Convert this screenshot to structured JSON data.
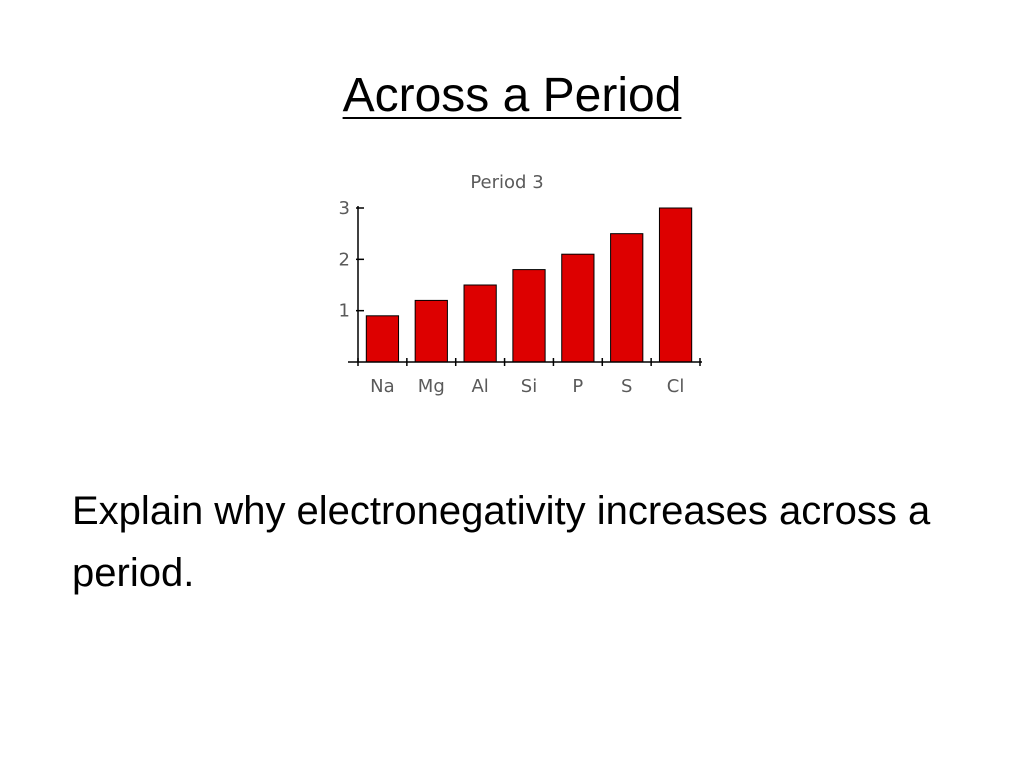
{
  "slide": {
    "title": "Across a Period",
    "body": "Explain why electronegativity increases across a period."
  },
  "chart_data": {
    "type": "bar",
    "title": "Period 3",
    "categories": [
      "Na",
      "Mg",
      "Al",
      "Si",
      "P",
      "S",
      "Cl"
    ],
    "values": [
      0.9,
      1.2,
      1.5,
      1.8,
      2.1,
      2.5,
      3.0
    ],
    "xlabel": "",
    "ylabel": "",
    "ylim": [
      0,
      3
    ],
    "yticks": [
      1,
      2,
      3
    ],
    "grid": false,
    "bar_color": "#dd0000",
    "bar_outline": "#000000"
  }
}
